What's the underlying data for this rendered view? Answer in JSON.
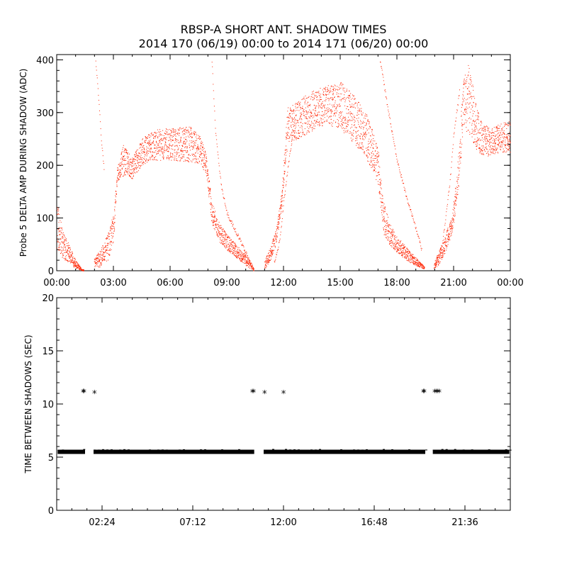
{
  "title": {
    "line1": "RBSP-A SHORT ANT. SHADOW TIMES",
    "line2": "2014 170 (06/19) 00:00 to 2014 171 (06/20) 00:00"
  },
  "colors": {
    "top_points": "#ff2200",
    "bottom_points": "#000000",
    "axes": "#000000"
  },
  "chart_data": [
    {
      "type": "scatter",
      "name": "top-panel",
      "ylabel": "Probe 5 DELTA AMP DURING SHADOW (ADC)",
      "xlabel": "",
      "xlim_hours": [
        0,
        24
      ],
      "ylim": [
        0,
        410
      ],
      "x_ticks": [
        {
          "hour": 0,
          "label": "00:00"
        },
        {
          "hour": 3,
          "label": "03:00"
        },
        {
          "hour": 6,
          "label": "06:00"
        },
        {
          "hour": 9,
          "label": "09:00"
        },
        {
          "hour": 12,
          "label": "12:00"
        },
        {
          "hour": 15,
          "label": "15:00"
        },
        {
          "hour": 18,
          "label": "18:00"
        },
        {
          "hour": 21,
          "label": "21:00"
        },
        {
          "hour": 24,
          "label": "00:00"
        }
      ],
      "y_ticks": [
        0,
        100,
        200,
        300,
        400
      ],
      "envelope": {
        "hours": [
          0.0,
          0.3,
          0.7,
          1.0,
          1.3,
          1.4,
          2.0,
          2.3,
          2.7,
          3.0,
          3.2,
          3.5,
          4.0,
          4.5,
          5.0,
          5.5,
          6.0,
          7.0,
          7.6,
          7.9,
          8.2,
          8.6,
          9.0,
          9.5,
          10.0,
          10.3,
          10.4,
          11.0,
          11.3,
          11.6,
          11.9,
          12.2,
          12.5,
          13.0,
          13.5,
          14.0,
          14.5,
          15.0,
          15.5,
          16.0,
          16.5,
          17.0,
          17.3,
          17.6,
          18.0,
          18.5,
          19.0,
          19.4,
          19.5,
          20.0,
          20.3,
          20.6,
          20.9,
          21.2,
          21.5,
          21.8,
          22.2,
          22.5,
          23.0,
          23.5,
          24.0
        ],
        "low": [
          40,
          25,
          12,
          5,
          1,
          0,
          5,
          8,
          20,
          55,
          170,
          180,
          175,
          200,
          210,
          210,
          210,
          205,
          205,
          180,
          90,
          55,
          40,
          25,
          10,
          3,
          0,
          3,
          20,
          50,
          120,
          240,
          245,
          255,
          265,
          275,
          275,
          270,
          250,
          230,
          205,
          160,
          70,
          50,
          35,
          20,
          10,
          3,
          0,
          5,
          15,
          40,
          70,
          130,
          270,
          260,
          230,
          215,
          220,
          225,
          225
        ],
        "high": [
          130,
          80,
          45,
          20,
          5,
          3,
          25,
          40,
          70,
          110,
          195,
          240,
          215,
          250,
          265,
          270,
          270,
          275,
          255,
          220,
          130,
          90,
          70,
          50,
          30,
          15,
          5,
          20,
          45,
          80,
          150,
          310,
          315,
          330,
          340,
          350,
          355,
          360,
          345,
          320,
          290,
          230,
          130,
          90,
          65,
          45,
          25,
          10,
          5,
          20,
          45,
          75,
          100,
          200,
          360,
          400,
          310,
          280,
          270,
          280,
          285
        ]
      },
      "streaks": [
        {
          "hours": [
            2.05,
            2.2,
            2.35,
            2.5
          ],
          "values": [
            400,
            330,
            250,
            190
          ]
        },
        {
          "hours": [
            8.2,
            8.4,
            8.7,
            9.0,
            9.4,
            9.8,
            10.2
          ],
          "values": [
            400,
            260,
            160,
            110,
            80,
            50,
            20
          ]
        },
        {
          "hours": [
            11.5,
            11.8,
            12.0,
            12.2,
            12.4,
            12.6
          ],
          "values": [
            15,
            60,
            130,
            190,
            240,
            290
          ]
        },
        {
          "hours": [
            17.1,
            17.5,
            18.0,
            18.5,
            19.0,
            19.3
          ],
          "values": [
            400,
            310,
            210,
            140,
            80,
            40
          ]
        },
        {
          "hours": [
            20.3,
            20.5,
            20.8,
            21.0,
            21.3
          ],
          "values": [
            30,
            80,
            170,
            260,
            340
          ]
        }
      ]
    },
    {
      "type": "scatter",
      "name": "bottom-panel",
      "ylabel": "TIME BETWEEN SHADOWS (SEC)",
      "xlabel": "",
      "xlim_hours": [
        0,
        24
      ],
      "ylim": [
        0,
        20
      ],
      "x_ticks": [
        {
          "hour": 2.4,
          "label": "02:24"
        },
        {
          "hour": 7.2,
          "label": "07:12"
        },
        {
          "hour": 12.0,
          "label": "12:00"
        },
        {
          "hour": 16.8,
          "label": "16:48"
        },
        {
          "hour": 21.6,
          "label": "21:36"
        }
      ],
      "y_ticks": [
        0,
        5,
        10,
        15,
        20
      ],
      "baseline_value": 5.5,
      "baseline_ranges_hours": [
        [
          0.05,
          1.5
        ],
        [
          1.95,
          10.45
        ],
        [
          10.95,
          19.5
        ],
        [
          19.9,
          23.95
        ]
      ],
      "outlier_points": [
        {
          "hour": 1.4,
          "value": 11.1
        },
        {
          "hour": 1.45,
          "value": 11.1
        },
        {
          "hour": 2.0,
          "value": 11.0
        },
        {
          "hour": 10.35,
          "value": 11.1
        },
        {
          "hour": 10.42,
          "value": 11.1
        },
        {
          "hour": 11.0,
          "value": 11.0
        },
        {
          "hour": 12.0,
          "value": 11.0
        },
        {
          "hour": 19.4,
          "value": 11.1
        },
        {
          "hour": 19.45,
          "value": 11.1
        },
        {
          "hour": 20.0,
          "value": 11.1
        },
        {
          "hour": 20.08,
          "value": 11.1
        },
        {
          "hour": 20.16,
          "value": 11.1
        },
        {
          "hour": 20.24,
          "value": 11.1
        }
      ]
    }
  ]
}
